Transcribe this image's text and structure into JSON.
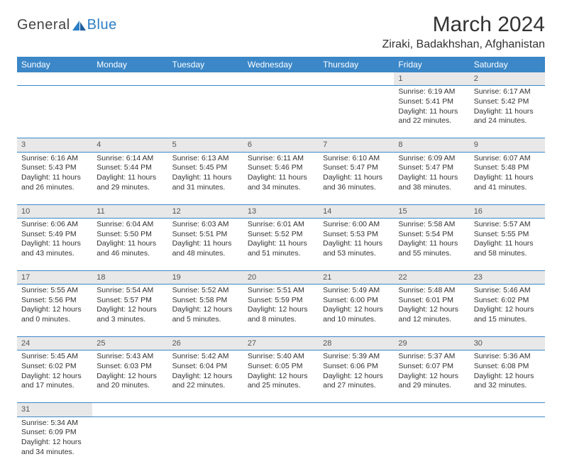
{
  "brand": {
    "general": "General",
    "blue": "Blue"
  },
  "title": "March 2024",
  "location": "Ziraki, Badakhshan, Afghanistan",
  "colors": {
    "header_bg": "#3b87c8",
    "header_text": "#ffffff",
    "daynum_bg": "#e8e8e8",
    "border": "#3b87c8",
    "brand_blue": "#2a7ec7",
    "text": "#333333"
  },
  "day_headers": [
    "Sunday",
    "Monday",
    "Tuesday",
    "Wednesday",
    "Thursday",
    "Friday",
    "Saturday"
  ],
  "weeks": [
    {
      "nums": [
        "",
        "",
        "",
        "",
        "",
        "1",
        "2"
      ],
      "cells": [
        null,
        null,
        null,
        null,
        null,
        {
          "sr": "Sunrise: 6:19 AM",
          "ss": "Sunset: 5:41 PM",
          "d1": "Daylight: 11 hours",
          "d2": "and 22 minutes."
        },
        {
          "sr": "Sunrise: 6:17 AM",
          "ss": "Sunset: 5:42 PM",
          "d1": "Daylight: 11 hours",
          "d2": "and 24 minutes."
        }
      ]
    },
    {
      "nums": [
        "3",
        "4",
        "5",
        "6",
        "7",
        "8",
        "9"
      ],
      "cells": [
        {
          "sr": "Sunrise: 6:16 AM",
          "ss": "Sunset: 5:43 PM",
          "d1": "Daylight: 11 hours",
          "d2": "and 26 minutes."
        },
        {
          "sr": "Sunrise: 6:14 AM",
          "ss": "Sunset: 5:44 PM",
          "d1": "Daylight: 11 hours",
          "d2": "and 29 minutes."
        },
        {
          "sr": "Sunrise: 6:13 AM",
          "ss": "Sunset: 5:45 PM",
          "d1": "Daylight: 11 hours",
          "d2": "and 31 minutes."
        },
        {
          "sr": "Sunrise: 6:11 AM",
          "ss": "Sunset: 5:46 PM",
          "d1": "Daylight: 11 hours",
          "d2": "and 34 minutes."
        },
        {
          "sr": "Sunrise: 6:10 AM",
          "ss": "Sunset: 5:47 PM",
          "d1": "Daylight: 11 hours",
          "d2": "and 36 minutes."
        },
        {
          "sr": "Sunrise: 6:09 AM",
          "ss": "Sunset: 5:47 PM",
          "d1": "Daylight: 11 hours",
          "d2": "and 38 minutes."
        },
        {
          "sr": "Sunrise: 6:07 AM",
          "ss": "Sunset: 5:48 PM",
          "d1": "Daylight: 11 hours",
          "d2": "and 41 minutes."
        }
      ]
    },
    {
      "nums": [
        "10",
        "11",
        "12",
        "13",
        "14",
        "15",
        "16"
      ],
      "cells": [
        {
          "sr": "Sunrise: 6:06 AM",
          "ss": "Sunset: 5:49 PM",
          "d1": "Daylight: 11 hours",
          "d2": "and 43 minutes."
        },
        {
          "sr": "Sunrise: 6:04 AM",
          "ss": "Sunset: 5:50 PM",
          "d1": "Daylight: 11 hours",
          "d2": "and 46 minutes."
        },
        {
          "sr": "Sunrise: 6:03 AM",
          "ss": "Sunset: 5:51 PM",
          "d1": "Daylight: 11 hours",
          "d2": "and 48 minutes."
        },
        {
          "sr": "Sunrise: 6:01 AM",
          "ss": "Sunset: 5:52 PM",
          "d1": "Daylight: 11 hours",
          "d2": "and 51 minutes."
        },
        {
          "sr": "Sunrise: 6:00 AM",
          "ss": "Sunset: 5:53 PM",
          "d1": "Daylight: 11 hours",
          "d2": "and 53 minutes."
        },
        {
          "sr": "Sunrise: 5:58 AM",
          "ss": "Sunset: 5:54 PM",
          "d1": "Daylight: 11 hours",
          "d2": "and 55 minutes."
        },
        {
          "sr": "Sunrise: 5:57 AM",
          "ss": "Sunset: 5:55 PM",
          "d1": "Daylight: 11 hours",
          "d2": "and 58 minutes."
        }
      ]
    },
    {
      "nums": [
        "17",
        "18",
        "19",
        "20",
        "21",
        "22",
        "23"
      ],
      "cells": [
        {
          "sr": "Sunrise: 5:55 AM",
          "ss": "Sunset: 5:56 PM",
          "d1": "Daylight: 12 hours",
          "d2": "and 0 minutes."
        },
        {
          "sr": "Sunrise: 5:54 AM",
          "ss": "Sunset: 5:57 PM",
          "d1": "Daylight: 12 hours",
          "d2": "and 3 minutes."
        },
        {
          "sr": "Sunrise: 5:52 AM",
          "ss": "Sunset: 5:58 PM",
          "d1": "Daylight: 12 hours",
          "d2": "and 5 minutes."
        },
        {
          "sr": "Sunrise: 5:51 AM",
          "ss": "Sunset: 5:59 PM",
          "d1": "Daylight: 12 hours",
          "d2": "and 8 minutes."
        },
        {
          "sr": "Sunrise: 5:49 AM",
          "ss": "Sunset: 6:00 PM",
          "d1": "Daylight: 12 hours",
          "d2": "and 10 minutes."
        },
        {
          "sr": "Sunrise: 5:48 AM",
          "ss": "Sunset: 6:01 PM",
          "d1": "Daylight: 12 hours",
          "d2": "and 12 minutes."
        },
        {
          "sr": "Sunrise: 5:46 AM",
          "ss": "Sunset: 6:02 PM",
          "d1": "Daylight: 12 hours",
          "d2": "and 15 minutes."
        }
      ]
    },
    {
      "nums": [
        "24",
        "25",
        "26",
        "27",
        "28",
        "29",
        "30"
      ],
      "cells": [
        {
          "sr": "Sunrise: 5:45 AM",
          "ss": "Sunset: 6:02 PM",
          "d1": "Daylight: 12 hours",
          "d2": "and 17 minutes."
        },
        {
          "sr": "Sunrise: 5:43 AM",
          "ss": "Sunset: 6:03 PM",
          "d1": "Daylight: 12 hours",
          "d2": "and 20 minutes."
        },
        {
          "sr": "Sunrise: 5:42 AM",
          "ss": "Sunset: 6:04 PM",
          "d1": "Daylight: 12 hours",
          "d2": "and 22 minutes."
        },
        {
          "sr": "Sunrise: 5:40 AM",
          "ss": "Sunset: 6:05 PM",
          "d1": "Daylight: 12 hours",
          "d2": "and 25 minutes."
        },
        {
          "sr": "Sunrise: 5:39 AM",
          "ss": "Sunset: 6:06 PM",
          "d1": "Daylight: 12 hours",
          "d2": "and 27 minutes."
        },
        {
          "sr": "Sunrise: 5:37 AM",
          "ss": "Sunset: 6:07 PM",
          "d1": "Daylight: 12 hours",
          "d2": "and 29 minutes."
        },
        {
          "sr": "Sunrise: 5:36 AM",
          "ss": "Sunset: 6:08 PM",
          "d1": "Daylight: 12 hours",
          "d2": "and 32 minutes."
        }
      ]
    },
    {
      "nums": [
        "31",
        "",
        "",
        "",
        "",
        "",
        ""
      ],
      "cells": [
        {
          "sr": "Sunrise: 5:34 AM",
          "ss": "Sunset: 6:09 PM",
          "d1": "Daylight: 12 hours",
          "d2": "and 34 minutes."
        },
        null,
        null,
        null,
        null,
        null,
        null
      ]
    }
  ]
}
